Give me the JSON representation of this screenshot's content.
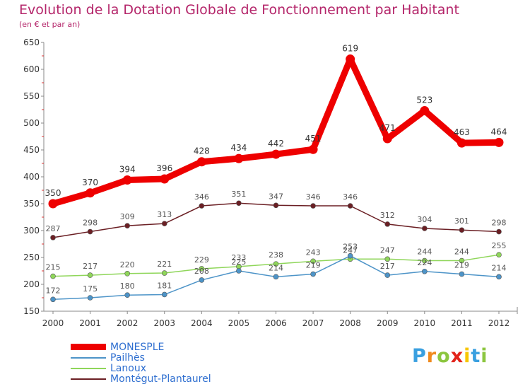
{
  "chart_data": {
    "type": "line",
    "title": "Evolution de la Dotation Globale de Fonctionnement par Habitant",
    "subtitle": "(en € et par an)",
    "x": [
      "2000",
      "2001",
      "2002",
      "2003",
      "2004",
      "2005",
      "2006",
      "2007",
      "2008",
      "2009",
      "2010",
      "2011",
      "2012"
    ],
    "ylim": [
      150,
      650
    ],
    "yticks": [
      150,
      200,
      250,
      300,
      350,
      400,
      450,
      500,
      550,
      600,
      650
    ],
    "grid": false,
    "legend_position": "bottom-left",
    "series": [
      {
        "name": "MONESPLE",
        "color": "#ee0000",
        "values": [
          350,
          370,
          394,
          396,
          428,
          434,
          442,
          451,
          619,
          471,
          523,
          463,
          464
        ]
      },
      {
        "name": "Pailhès",
        "color": "#4d94c8",
        "values": [
          172,
          175,
          180,
          181,
          208,
          225,
          214,
          219,
          253,
          217,
          224,
          219,
          214
        ]
      },
      {
        "name": "Lanoux",
        "color": "#8fd65a",
        "values": [
          215,
          217,
          220,
          221,
          229,
          233,
          238,
          243,
          247,
          247,
          244,
          244,
          255
        ]
      },
      {
        "name": "Montégut-Plantaurel",
        "color": "#6b1f24",
        "values": [
          287,
          298,
          309,
          313,
          346,
          351,
          347,
          346,
          346,
          312,
          304,
          301,
          298
        ]
      }
    ]
  },
  "logo": {
    "letters": [
      {
        "char": "P",
        "color": "#3aa0e0"
      },
      {
        "char": "r",
        "color": "#f08a1e"
      },
      {
        "char": "o",
        "color": "#8cc63f"
      },
      {
        "char": "x",
        "color": "#e2231a"
      },
      {
        "char": "i",
        "color": "#f7c600"
      },
      {
        "char": "t",
        "color": "#3aa0e0"
      },
      {
        "char": "i",
        "color": "#8cc63f"
      }
    ]
  }
}
